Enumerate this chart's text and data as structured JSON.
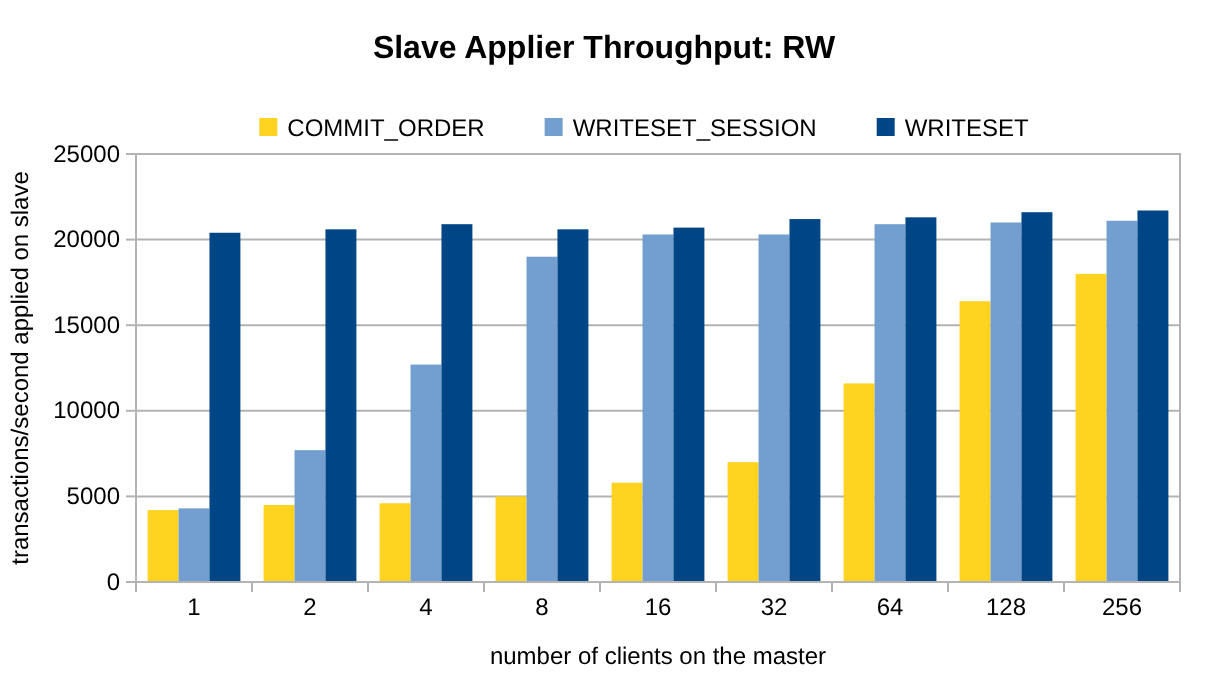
{
  "chart_data": {
    "type": "bar",
    "title": "Slave Applier Throughput: RW",
    "xlabel": "number of clients on the master",
    "ylabel": "transactions/second applied on slave",
    "categories": [
      "1",
      "2",
      "4",
      "8",
      "16",
      "32",
      "64",
      "128",
      "256"
    ],
    "series": [
      {
        "name": "COMMIT_ORDER",
        "color": "#ffd320",
        "values": [
          4200,
          4500,
          4600,
          5000,
          5800,
          7000,
          11600,
          16400,
          18000
        ]
      },
      {
        "name": "WRITESET_SESSION",
        "color": "#729fcf",
        "values": [
          4300,
          7700,
          12700,
          19000,
          20300,
          20300,
          20900,
          21000,
          21100
        ]
      },
      {
        "name": "WRITESET",
        "color": "#004586",
        "values": [
          20400,
          20600,
          20900,
          20600,
          20700,
          21200,
          21300,
          21600,
          21700
        ]
      }
    ],
    "ylim": [
      0,
      25000
    ],
    "yticks": [
      0,
      5000,
      10000,
      15000,
      20000,
      25000
    ],
    "grid": "y",
    "legend": "top"
  }
}
